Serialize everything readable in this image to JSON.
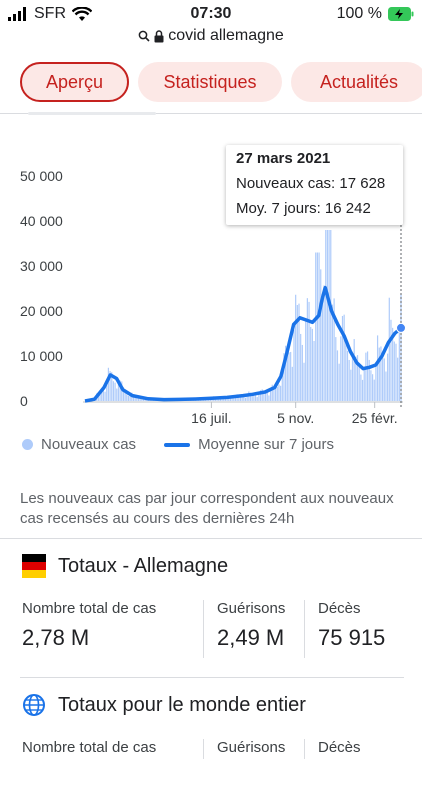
{
  "status_bar": {
    "carrier": "SFR",
    "time": "07:30",
    "battery": "100 %"
  },
  "url_bar": {
    "query": "covid allemagne"
  },
  "tabs": [
    {
      "label": "Aperçu",
      "active": true
    },
    {
      "label": "Statistiques",
      "active": false
    },
    {
      "label": "Actualités",
      "active": false
    }
  ],
  "chart_data": {
    "type": "bar",
    "title": "",
    "xlabel": "",
    "ylabel": "",
    "y_ticks": [
      "50 000",
      "40 000",
      "30 000",
      "20 000",
      "10 000",
      "0"
    ],
    "ylim": [
      0,
      50000
    ],
    "x_ticks": [
      "16 juil.",
      "5 nov.",
      "25 févr."
    ],
    "x_tick_positions": [
      0.4,
      0.6667,
      0.9167
    ],
    "legend_placement": "bottom",
    "series": [
      {
        "name": "Nouveaux cas",
        "kind": "bar",
        "color": "#aecbfa"
      },
      {
        "name": "Moyenne sur 7 jours",
        "kind": "line",
        "color": "#1a73e8",
        "points": [
          [
            0.0,
            0
          ],
          [
            0.03,
            400
          ],
          [
            0.06,
            3000
          ],
          [
            0.08,
            5800
          ],
          [
            0.1,
            5000
          ],
          [
            0.12,
            2500
          ],
          [
            0.15,
            1200
          ],
          [
            0.2,
            500
          ],
          [
            0.25,
            300
          ],
          [
            0.3,
            350
          ],
          [
            0.35,
            450
          ],
          [
            0.4,
            600
          ],
          [
            0.45,
            800
          ],
          [
            0.5,
            1200
          ],
          [
            0.53,
            1500
          ],
          [
            0.57,
            2000
          ],
          [
            0.6,
            3000
          ],
          [
            0.62,
            5500
          ],
          [
            0.64,
            11000
          ],
          [
            0.66,
            17000
          ],
          [
            0.68,
            18500
          ],
          [
            0.7,
            18000
          ],
          [
            0.72,
            17500
          ],
          [
            0.74,
            19000
          ],
          [
            0.75,
            22500
          ],
          [
            0.76,
            25200
          ],
          [
            0.78,
            20000
          ],
          [
            0.8,
            17000
          ],
          [
            0.82,
            14500
          ],
          [
            0.84,
            11000
          ],
          [
            0.86,
            8500
          ],
          [
            0.88,
            7200
          ],
          [
            0.9,
            7500
          ],
          [
            0.92,
            8000
          ],
          [
            0.94,
            10000
          ],
          [
            0.96,
            13000
          ],
          [
            0.98,
            15000
          ],
          [
            1.0,
            16242
          ]
        ]
      }
    ],
    "tooltip": {
      "date": "27 mars 2021",
      "new_cases": "Nouveaux cas: 17 628",
      "avg7": "Moy. 7 jours: 16 242"
    }
  },
  "footnote": "Les nouveaux cas par jour correspondent aux nouveaux cas recensés au cours des dernières 24h",
  "germany": {
    "title": "Totaux - Allemagne",
    "stats": [
      {
        "label": "Nombre total de cas",
        "value": "2,78 M"
      },
      {
        "label": "Guérisons",
        "value": "2,49 M"
      },
      {
        "label": "Décès",
        "value": "75 915"
      }
    ]
  },
  "world": {
    "title": "Totaux pour le monde entier",
    "stats": [
      {
        "label": "Nombre total de cas"
      },
      {
        "label": "Guérisons"
      },
      {
        "label": "Décès"
      }
    ]
  }
}
